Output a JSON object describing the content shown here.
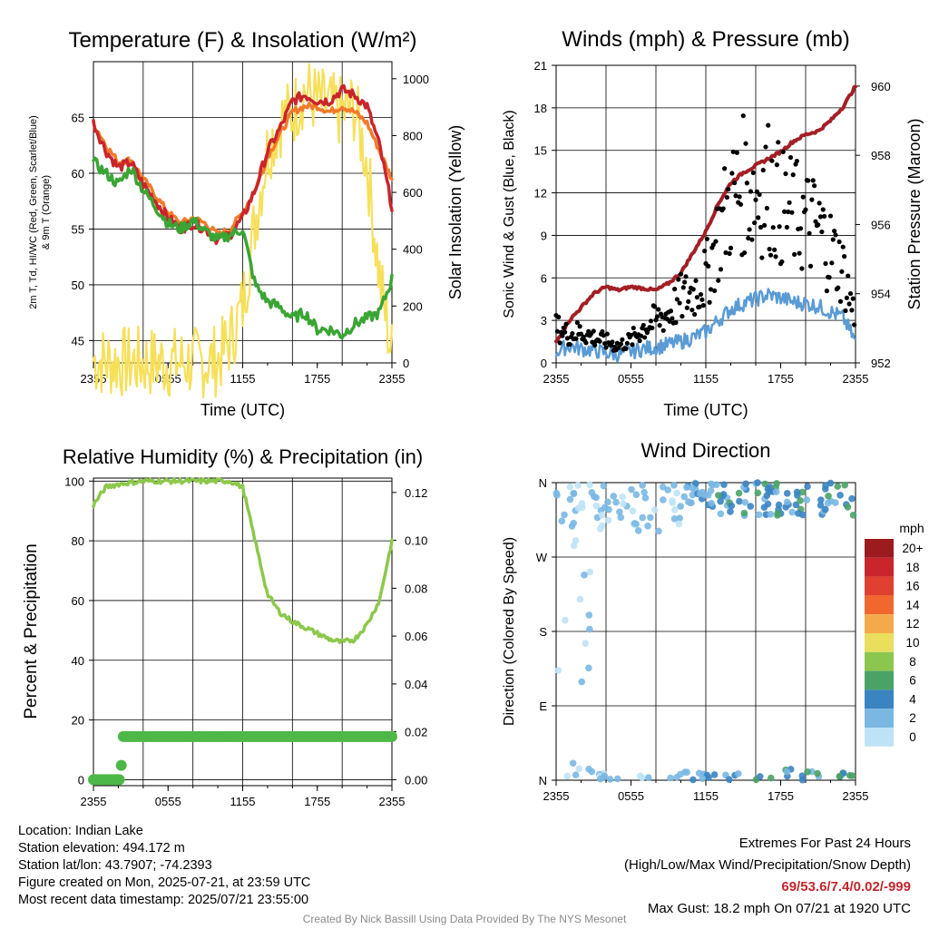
{
  "chart_data": [
    {
      "type": "line",
      "title": "Temperature (F) & Insolation (W/m²)",
      "xlabel": "Time (UTC)",
      "ylabel_left": "2m T, Tₐ, HI/WC (Red, Green, Scarlet/Blue) & 9m T (Orange)",
      "ylabel_left_line1": "2m T, Td, HI/WC (Red, Green, Scarlet/Blue)",
      "ylabel_left_line2": "& 9m T (Orange)",
      "ylabel_right": "Solar Insolation (Yellow)",
      "x_ticks": [
        "2355",
        "0555",
        "1155",
        "1755",
        "2355"
      ],
      "y_left_ticks": [
        45,
        50,
        55,
        60,
        65
      ],
      "y_left_range": [
        43,
        70
      ],
      "y_right_ticks": [
        0,
        200,
        400,
        600,
        800,
        1000
      ],
      "y_right_range": [
        0,
        1060
      ],
      "hours": [
        0,
        1,
        2,
        3,
        4,
        5,
        6,
        7,
        8,
        9,
        10,
        11,
        12,
        13,
        14,
        15,
        16,
        17,
        18,
        19,
        20,
        21,
        22,
        23,
        24
      ],
      "series": [
        {
          "name": "2m T",
          "color": "#c9252b",
          "values": [
            64.5,
            62,
            60.5,
            61,
            59,
            57.5,
            56,
            55,
            55.5,
            55,
            54,
            54.5,
            56,
            58.5,
            62,
            64,
            66.5,
            67,
            66.5,
            66.5,
            67.5,
            67,
            66,
            62.5,
            57
          ]
        },
        {
          "name": "9m T",
          "color": "#f07b2a",
          "values": [
            64.5,
            62.5,
            61,
            61.2,
            59.5,
            58,
            56.5,
            55.5,
            56,
            55.5,
            54.5,
            55,
            56.5,
            58.5,
            61.5,
            63.5,
            65.5,
            66,
            66,
            65.5,
            66,
            65.5,
            64.5,
            62,
            59.5
          ]
        },
        {
          "name": "Td",
          "color": "#3aa534",
          "values": [
            61,
            60,
            59,
            60.5,
            58.5,
            57,
            55.5,
            55,
            55.8,
            54.8,
            54,
            54.5,
            55,
            50,
            48.5,
            48,
            47,
            47.5,
            46,
            46,
            45.5,
            46.5,
            47,
            47.5,
            50.5
          ]
        },
        {
          "name": "Solar Insolation",
          "color": "#f6e05a",
          "values": [
            10,
            5,
            3,
            2,
            2,
            2,
            2,
            2,
            2,
            2,
            10,
            80,
            200,
            500,
            750,
            850,
            880,
            960,
            920,
            900,
            880,
            900,
            700,
            300,
            30
          ]
        }
      ]
    },
    {
      "type": "scatter",
      "title": "Winds (mph) & Pressure (mb)",
      "xlabel": "Time (UTC)",
      "ylabel_left": "Sonic Wind & Gust (Blue, Black)",
      "ylabel_right": "Station Pressure (Maroon)",
      "x_ticks": [
        "2355",
        "0555",
        "1155",
        "1755",
        "2355"
      ],
      "y_left_ticks": [
        0,
        3,
        6,
        9,
        12,
        15,
        18,
        21
      ],
      "y_left_range": [
        0,
        21
      ],
      "y_right_ticks": [
        952,
        954,
        956,
        958,
        960
      ],
      "y_right_range": [
        952,
        960.6
      ],
      "hours": [
        0,
        1,
        2,
        3,
        4,
        5,
        6,
        7,
        8,
        9,
        10,
        11,
        12,
        13,
        14,
        15,
        16,
        17,
        18,
        19,
        20,
        21,
        22,
        23,
        24
      ],
      "series": [
        {
          "name": "Sonic Wind",
          "color": "#5a9bd5",
          "values": [
            0.8,
            1.2,
            1.0,
            0.9,
            0.7,
            0.6,
            0.8,
            1.0,
            1.1,
            1.3,
            1.5,
            1.8,
            2.2,
            3.0,
            3.8,
            4.2,
            4.5,
            4.8,
            4.6,
            4.3,
            4.2,
            4.0,
            3.6,
            3.2,
            1.5
          ]
        },
        {
          "name": "Sonic Gust",
          "color": "#000000",
          "values": [
            2.5,
            2.0,
            2.2,
            1.8,
            1.5,
            1.2,
            1.6,
            2.5,
            3.0,
            3.5,
            4.5,
            5.0,
            6.0,
            9.0,
            11.5,
            12.5,
            12.0,
            12.5,
            11.0,
            10.5,
            10.0,
            9.5,
            8.0,
            6.5,
            3.0
          ]
        },
        {
          "name": "Station Pressure",
          "color": "#a31f25",
          "values": [
            952.6,
            953.2,
            953.6,
            954.0,
            954.2,
            954.1,
            954.2,
            954.15,
            954.1,
            954.3,
            954.6,
            955.2,
            955.8,
            956.6,
            957.2,
            957.5,
            957.7,
            957.9,
            958.1,
            958.4,
            958.6,
            958.7,
            959.0,
            959.4,
            960.0
          ]
        }
      ]
    },
    {
      "type": "line",
      "title": "Relative Humidity (%) & Precipitation (in)",
      "xlabel": "",
      "ylabel_left": "Percent & Precipitation",
      "x_ticks": [
        "2355",
        "0555",
        "1155",
        "1755",
        "2355"
      ],
      "y_left_ticks": [
        0,
        20,
        40,
        60,
        80,
        100
      ],
      "y_left_range": [
        -2,
        101
      ],
      "y_right_ticks": [
        "0.00",
        "0.02",
        "0.04",
        "0.06",
        "0.08",
        "0.10",
        "0.12"
      ],
      "y_right_range": [
        -0.0025,
        0.126
      ],
      "hours": [
        0,
        1,
        2,
        3,
        4,
        5,
        6,
        7,
        8,
        9,
        10,
        11,
        12,
        13,
        14,
        15,
        16,
        17,
        18,
        19,
        20,
        21,
        22,
        23,
        24
      ],
      "series": [
        {
          "name": "Relative Humidity",
          "color": "#8cc84b",
          "values": [
            92,
            98,
            99,
            99.5,
            100,
            100,
            100,
            100,
            100,
            100,
            100,
            100,
            98,
            80,
            62,
            56,
            53,
            51,
            49,
            47,
            46,
            47,
            52,
            60,
            80
          ]
        },
        {
          "name": "Precipitation",
          "color": "#4db848",
          "values": [
            0,
            0,
            0,
            0.018,
            0.018,
            0.018,
            0.018,
            0.018,
            0.018,
            0.018,
            0.018,
            0.018,
            0.018,
            0.018,
            0.018,
            0.018,
            0.018,
            0.018,
            0.018,
            0.018,
            0.018,
            0.018,
            0.018,
            0.018,
            0.018
          ]
        }
      ]
    },
    {
      "type": "scatter",
      "title": "Wind Direction",
      "xlabel": "",
      "ylabel_left": "Direction (Colored By Speed)",
      "x_ticks": [
        "2355",
        "0555",
        "1155",
        "1755",
        "2355"
      ],
      "y_ticks": [
        "N",
        "E",
        "S",
        "W",
        "N"
      ],
      "y_range_deg": [
        0,
        360
      ],
      "legend_title": "mph",
      "legend_placement": "right",
      "legend_labels": [
        "20+",
        "18",
        "16",
        "14",
        "12",
        "10",
        "8",
        "6",
        "4",
        "2",
        "0"
      ],
      "legend_colors": [
        "#9b1b1e",
        "#c9252b",
        "#e0402f",
        "#f0682e",
        "#f6a94a",
        "#e9df5d",
        "#8bc74f",
        "#4aa267",
        "#3a84c2",
        "#7ab8e3",
        "#bfe3f6"
      ]
    }
  ],
  "info": {
    "location": "Location: Indian Lake",
    "elevation": "Station elevation: 494.172 m",
    "latlon": "Station lat/lon: 43.7907; -74.2393",
    "created": "Figure created on Mon, 2025-07-21, at 23:59 UTC",
    "recent": "Most recent data timestamp: 2025/07/21 23:55:00"
  },
  "extremes": {
    "header": "Extremes For Past 24 Hours",
    "subheader": "(High/Low/Max Wind/Precipitation/Snow Depth)",
    "values": "69/53.6/7.4/0.02/-999",
    "max_gust": "Max Gust: 18.2 mph On 07/21 at 1920 UTC"
  },
  "credit": "Created By Nick Bassill Using Data Provided By The NYS Mesonet"
}
